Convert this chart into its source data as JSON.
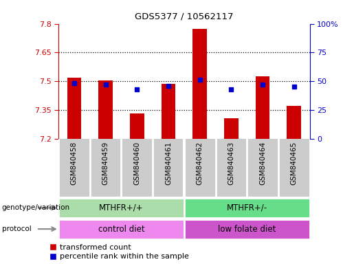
{
  "title": "GDS5377 / 10562117",
  "samples": [
    "GSM840458",
    "GSM840459",
    "GSM840460",
    "GSM840461",
    "GSM840462",
    "GSM840463",
    "GSM840464",
    "GSM840465"
  ],
  "red_values": [
    7.52,
    7.505,
    7.33,
    7.485,
    7.775,
    7.305,
    7.525,
    7.37
  ],
  "blue_values": [
    48,
    47,
    43,
    46,
    51,
    43,
    47,
    45
  ],
  "ylim_left": [
    7.2,
    7.8
  ],
  "ylim_right": [
    0,
    100
  ],
  "yticks_left": [
    7.2,
    7.35,
    7.5,
    7.65,
    7.8
  ],
  "yticks_right": [
    0,
    25,
    50,
    75,
    100
  ],
  "ytick_labels_left": [
    "7.2",
    "7.35",
    "7.5",
    "7.65",
    "7.8"
  ],
  "ytick_labels_right": [
    "0",
    "25",
    "50",
    "75",
    "100%"
  ],
  "hlines": [
    7.35,
    7.5,
    7.65
  ],
  "bar_color": "#cc0000",
  "dot_color": "#0000cc",
  "bar_width": 0.45,
  "genotype_labels": [
    "MTHFR+/+",
    "MTHFR+/-"
  ],
  "genotype_xranges": [
    [
      0,
      3
    ],
    [
      4,
      7
    ]
  ],
  "genotype_colors": [
    "#aaddaa",
    "#66dd88"
  ],
  "protocol_labels": [
    "control diet",
    "low folate diet"
  ],
  "protocol_xranges": [
    [
      0,
      3
    ],
    [
      4,
      7
    ]
  ],
  "protocol_colors": [
    "#ee88ee",
    "#cc55cc"
  ],
  "legend_red_label": "transformed count",
  "legend_blue_label": "percentile rank within the sample",
  "left_label_genotype": "genotype/variation",
  "left_label_protocol": "protocol",
  "left_axis_color": "#cc0000",
  "right_axis_color": "#0000cc",
  "sample_bg_color": "#cccccc",
  "sample_border_color": "#ffffff",
  "arrow_color": "#888888"
}
